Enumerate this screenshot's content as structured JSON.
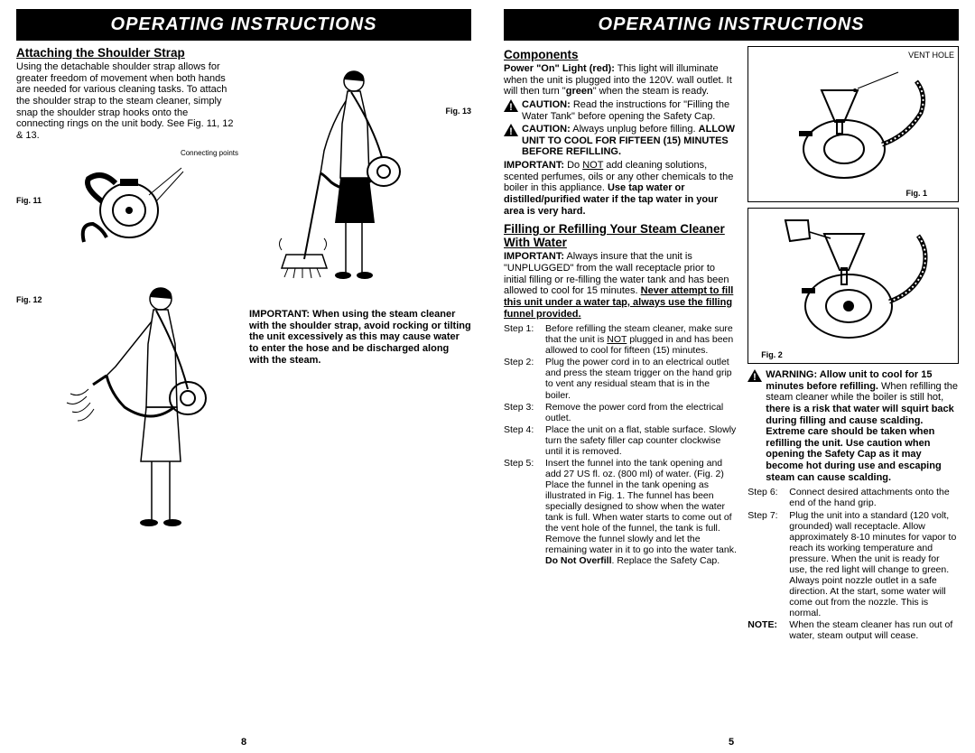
{
  "left": {
    "title": "OPERATING INSTRUCTIONS",
    "heading": "Attaching the Shoulder Strap",
    "intro": "Using the detachable shoulder strap allows for greater freedom of movement when both hands are needed for various cleaning tasks. To attach the shoulder strap to the steam cleaner, simply snap the shoulder strap hooks onto the connecting rings on the unit body.  See Fig. 11, 12 & 13.",
    "fig11": "Fig. 11",
    "fig12": "Fig. 12",
    "fig13": "Fig. 13",
    "connecting_points": "Connecting points",
    "important": "IMPORTANT: When using the steam cleaner with the shoulder strap, avoid rocking or tilting the unit excessively as this may cause water to enter the hose and be discharged along with the steam.",
    "pagenum": "8"
  },
  "right": {
    "title": "OPERATING INSTRUCTIONS",
    "heading_components": "Components",
    "power_on_label": "Power \"On\" Light (red):",
    "power_on_text": " This light will illuminate when the unit is plugged into the 120V. wall outlet. It will then turn \"",
    "power_on_green": "green",
    "power_on_tail": "\" when the steam is ready.",
    "caution1_label": "CAUTION:",
    "caution1_text": " Read the instructions for \"Filling the Water Tank\" before opening the Safety Cap.",
    "caution2_label": "CAUTION:",
    "caution2_text": "  Always unplug before filling. ",
    "caution2_bold": "ALLOW  UNIT TO COOL FOR FIFTEEN (15) MINUTES BEFORE REFILLING.",
    "important_label": "IMPORTANT:",
    "important_text": " Do ",
    "important_not": "NOT",
    "important_tail": " add cleaning solutions, scented perfumes, oils or any other chemicals to the boiler in this appliance. ",
    "important_bold_tail": "Use tap water or distilled/purified water if the tap water in your area is very hard.",
    "heading_fill": "Filling or Refilling Your Steam Cleaner With Water",
    "fill_imp_label": "IMPORTANT:",
    "fill_imp_text": "  Always insure that the unit is \"UNPLUGGED\" from the wall receptacle prior to initial filling or re-filling the water tank and has been allowed to cool for 15 minutes. ",
    "fill_imp_underline": "Never attempt to fill this unit under a water tap, always use the filling funnel provided.",
    "steps": [
      {
        "label": "Step 1:",
        "text": "Before refilling the steam cleaner, make sure that the unit is ",
        "u": "NOT",
        "tail": " plugged in and has been allowed to cool for fifteen (15) minutes."
      },
      {
        "label": "Step 2:",
        "text": "Plug the power cord in to an electrical outlet and press the steam trigger on the hand grip to vent any residual steam that is in the boiler."
      },
      {
        "label": "Step 3:",
        "text": "Remove the power cord from the electrical outlet."
      },
      {
        "label": "Step 4:",
        "text": "Place the unit on a flat, stable surface. Slowly turn the safety filler cap counter clockwise until it is removed."
      },
      {
        "label": "Step 5:",
        "text": "Insert the funnel into the tank opening and add 27 US fl. oz. (800 ml) of water. (Fig. 2) Place the funnel in the tank opening as illustrated in Fig. 1. The funnel has been specially designed to show when the water tank is full. When water starts to come out of the vent hole of the funnel, the tank is full. Remove the funnel slowly and let the remaining water in it to go into the water tank. ",
        "b": "Do Not Overfill",
        "tail2": ". Replace the Safety Cap."
      }
    ],
    "vent_hole": "VENT HOLE",
    "fig1": "Fig. 1",
    "fig2": "Fig. 2",
    "warning_label": "WARNING: Allow unit to cool for 15 minutes before refilling.",
    "warning_text": " When refilling the steam cleaner while the boiler is still hot, ",
    "warning_bold": "there is a risk that water will squirt back during filling and cause scalding. Extreme care should be taken when refilling the unit. Use caution when opening the Safety Cap as it may become hot during use and escaping steam can cause scalding.",
    "steps_r": [
      {
        "label": "Step 6:",
        "text": "Connect desired attachments onto the end of the hand grip."
      },
      {
        "label": "Step 7:",
        "text": "Plug the unit into a standard (120 volt, grounded) wall receptacle. Allow approximately 8-10 minutes for vapor to reach its working temperature and pressure. When the unit is ready for use, the red light will change to green. Always point nozzle outlet in a safe direction. At the start, some water will come out from the nozzle. This is normal."
      }
    ],
    "note_label": "NOTE:",
    "note_text": " When the steam cleaner has run out of water, steam output will cease.",
    "pagenum": "5"
  },
  "colors": {
    "bar_bg": "#000000",
    "bar_fg": "#ffffff",
    "text": "#000000"
  }
}
